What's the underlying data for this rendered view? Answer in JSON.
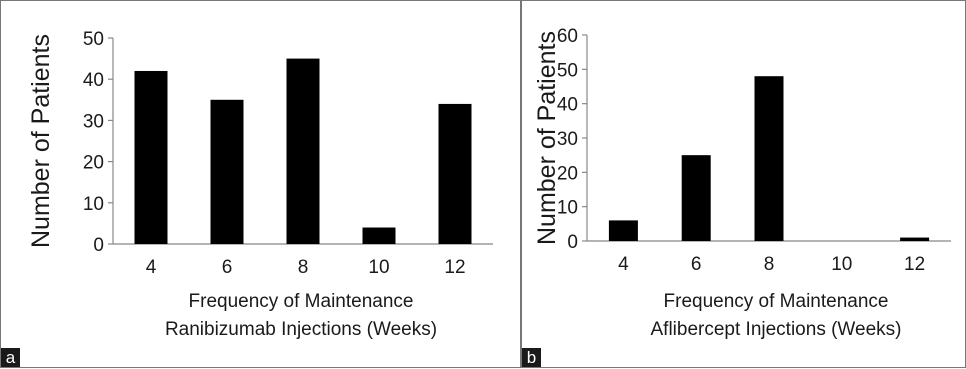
{
  "chart_data": [
    {
      "panel_label": "a",
      "type": "bar",
      "categories": [
        "4",
        "6",
        "8",
        "10",
        "12"
      ],
      "values": [
        42,
        35,
        45,
        4,
        34
      ],
      "ylim": [
        0,
        50
      ],
      "yticks": [
        "0",
        "10",
        "20",
        "30",
        "40",
        "50"
      ],
      "ylabel": "Number of Patients",
      "xlabel_lines": [
        "Frequency of Maintenance",
        "Ranibizumab Injections (Weeks)"
      ],
      "bar_color": "#000000",
      "grid": false,
      "legend": "none"
    },
    {
      "panel_label": "b",
      "type": "bar",
      "categories": [
        "4",
        "6",
        "8",
        "10",
        "12"
      ],
      "values": [
        6,
        25,
        48,
        0,
        1
      ],
      "ylim": [
        0,
        60
      ],
      "yticks": [
        "0",
        "10",
        "20",
        "30",
        "40",
        "50",
        "60"
      ],
      "ylabel": "Number of Patients",
      "xlabel_lines": [
        "Frequency of Maintenance",
        "Aflibercept Injections (Weeks)"
      ],
      "bar_color": "#000000",
      "grid": false,
      "legend": "none"
    }
  ]
}
